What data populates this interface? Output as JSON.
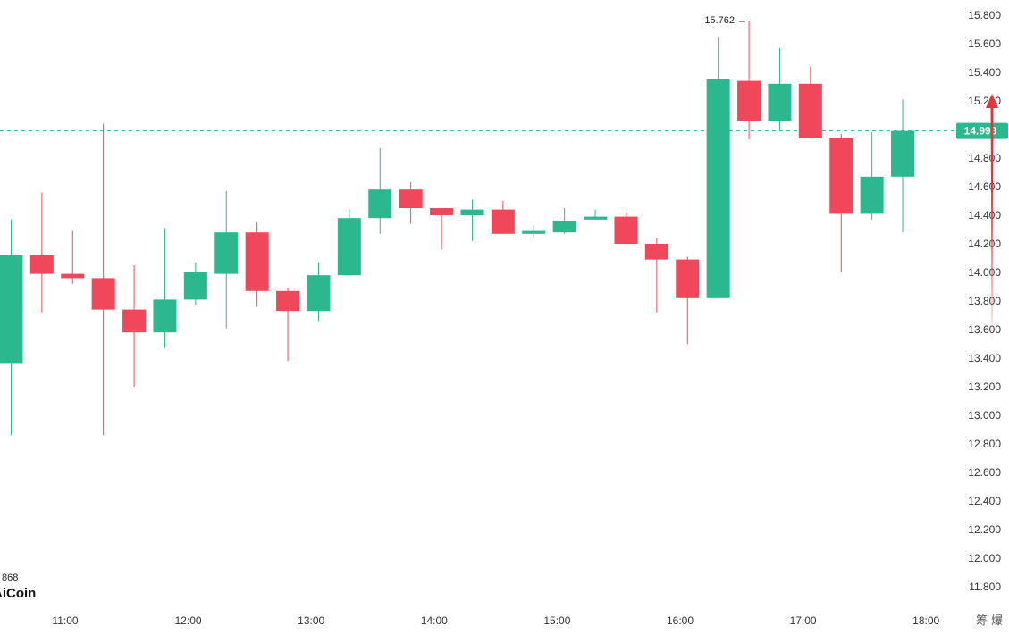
{
  "chart_data": {
    "type": "candlestick",
    "colors": {
      "up": "#2bb88f",
      "down": "#f0485a",
      "dashed_line": "#2bb88f",
      "arrow": "#e8333f"
    },
    "y_axis": {
      "range": [
        11.7,
        15.85
      ],
      "ticks": [
        "15.800",
        "15.600",
        "15.400",
        "15.200",
        "15.000",
        "14.800",
        "14.600",
        "14.400",
        "14.200",
        "14.000",
        "13.800",
        "13.600",
        "13.400",
        "13.200",
        "13.000",
        "12.800",
        "12.600",
        "12.400",
        "12.200",
        "12.000",
        "11.800"
      ]
    },
    "x_axis": {
      "ticks": [
        {
          "label": "11:00",
          "t": 11.0
        },
        {
          "label": "12:00",
          "t": 12.0
        },
        {
          "label": "13:00",
          "t": 13.0
        },
        {
          "label": "14:00",
          "t": 14.0
        },
        {
          "label": "15:00",
          "t": 15.0
        },
        {
          "label": "16:00",
          "t": 16.0
        },
        {
          "label": "17:00",
          "t": 17.0
        },
        {
          "label": "18:00",
          "t": 18.0
        }
      ]
    },
    "candles": [
      {
        "t": 10.56,
        "o": 13.36,
        "h": 14.37,
        "l": 12.86,
        "c": 14.12
      },
      {
        "t": 10.81,
        "o": 14.12,
        "h": 14.56,
        "l": 13.72,
        "c": 13.99
      },
      {
        "t": 11.06,
        "o": 13.99,
        "h": 14.29,
        "l": 13.92,
        "c": 13.96
      },
      {
        "t": 11.31,
        "o": 13.96,
        "h": 15.04,
        "l": 12.86,
        "c": 13.74
      },
      {
        "t": 11.56,
        "o": 13.74,
        "h": 14.05,
        "l": 13.2,
        "c": 13.58
      },
      {
        "t": 11.81,
        "o": 13.58,
        "h": 14.31,
        "l": 13.47,
        "c": 13.81
      },
      {
        "t": 12.06,
        "o": 13.81,
        "h": 14.07,
        "l": 13.77,
        "c": 14.0
      },
      {
        "t": 12.31,
        "o": 13.99,
        "h": 14.57,
        "l": 13.61,
        "c": 14.28
      },
      {
        "t": 12.56,
        "o": 14.28,
        "h": 14.35,
        "l": 13.76,
        "c": 13.87
      },
      {
        "t": 12.81,
        "o": 13.87,
        "h": 13.89,
        "l": 13.38,
        "c": 13.73
      },
      {
        "t": 13.06,
        "o": 13.73,
        "h": 14.07,
        "l": 13.66,
        "c": 13.98
      },
      {
        "t": 13.31,
        "o": 13.98,
        "h": 14.44,
        "l": 13.98,
        "c": 14.38
      },
      {
        "t": 13.56,
        "o": 14.38,
        "h": 14.87,
        "l": 14.27,
        "c": 14.58
      },
      {
        "t": 13.81,
        "o": 14.58,
        "h": 14.63,
        "l": 14.34,
        "c": 14.45
      },
      {
        "t": 14.06,
        "o": 14.45,
        "h": 14.45,
        "l": 14.16,
        "c": 14.4
      },
      {
        "t": 14.31,
        "o": 14.4,
        "h": 14.51,
        "l": 14.22,
        "c": 14.44
      },
      {
        "t": 14.56,
        "o": 14.44,
        "h": 14.5,
        "l": 14.27,
        "c": 14.27
      },
      {
        "t": 14.81,
        "o": 14.27,
        "h": 14.33,
        "l": 14.24,
        "c": 14.29
      },
      {
        "t": 15.06,
        "o": 14.28,
        "h": 14.45,
        "l": 14.27,
        "c": 14.36
      },
      {
        "t": 15.31,
        "o": 14.37,
        "h": 14.44,
        "l": 14.37,
        "c": 14.39
      },
      {
        "t": 15.56,
        "o": 14.39,
        "h": 14.42,
        "l": 14.2,
        "c": 14.2
      },
      {
        "t": 15.81,
        "o": 14.2,
        "h": 14.24,
        "l": 13.72,
        "c": 14.09
      },
      {
        "t": 16.06,
        "o": 14.09,
        "h": 14.11,
        "l": 13.5,
        "c": 13.82
      },
      {
        "t": 16.31,
        "o": 13.82,
        "h": 15.65,
        "l": 13.82,
        "c": 15.35
      },
      {
        "t": 16.56,
        "o": 15.34,
        "h": 15.762,
        "l": 14.93,
        "c": 15.06
      },
      {
        "t": 16.81,
        "o": 15.06,
        "h": 15.57,
        "l": 15.0,
        "c": 15.32
      },
      {
        "t": 17.06,
        "o": 15.32,
        "h": 15.44,
        "l": 14.94,
        "c": 14.94
      },
      {
        "t": 17.31,
        "o": 14.94,
        "h": 14.97,
        "l": 14.0,
        "c": 14.41
      },
      {
        "t": 17.56,
        "o": 14.41,
        "h": 14.98,
        "l": 14.37,
        "c": 14.67
      },
      {
        "t": 17.81,
        "o": 14.67,
        "h": 15.21,
        "l": 14.28,
        "c": 14.99
      }
    ],
    "max_annotation": {
      "label": "15.762",
      "arrow": "→",
      "value": 15.762,
      "t": 16.56
    },
    "current_price": {
      "label": "14.993",
      "value": 14.99
    },
    "arrow_overlay": {
      "from_value": 13.5,
      "to_value": 15.25
    },
    "corner_text": {
      "prefix_fragment": "868",
      "logo": "AiCoin",
      "right_chars": "筹 爆"
    }
  }
}
